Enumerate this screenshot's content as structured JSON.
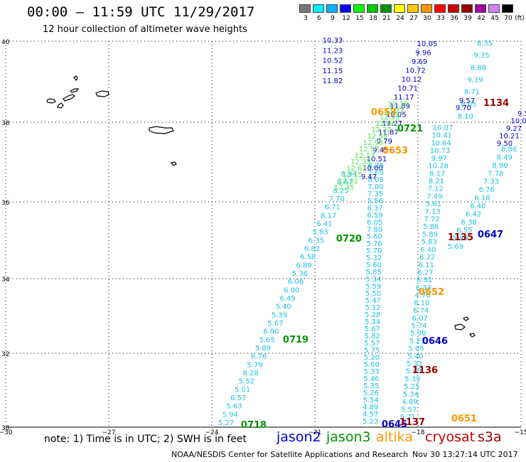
{
  "header": {
    "title": "00:00 – 11:59 UTC 11/29/2017",
    "subtitle": "12 hour collection of altimeter wave heights"
  },
  "color_scale": {
    "unit": "(ft)",
    "bins": [
      {
        "label": "3",
        "color": "#787878"
      },
      {
        "label": "6",
        "color": "#00f0ff"
      },
      {
        "label": "9",
        "color": "#00b4ff"
      },
      {
        "label": "12",
        "color": "#0000ff"
      },
      {
        "label": "15",
        "color": "#00ff00"
      },
      {
        "label": "18",
        "color": "#00c800"
      },
      {
        "label": "21",
        "color": "#009600"
      },
      {
        "label": "24",
        "color": "#ffff00"
      },
      {
        "label": "27",
        "color": "#ffc800"
      },
      {
        "label": "30",
        "color": "#ff9600"
      },
      {
        "label": "33",
        "color": "#ff0000"
      },
      {
        "label": "36",
        "color": "#c80000"
      },
      {
        "label": "39",
        "color": "#960000"
      },
      {
        "label": "42",
        "color": "#a000a0"
      },
      {
        "label": "45",
        "color": "#d282ff"
      },
      {
        "label": "70",
        "color": "#000000"
      }
    ]
  },
  "map": {
    "lat_labels": [
      "40",
      "38",
      "36",
      "34",
      "32",
      "30"
    ],
    "lon_labels": [
      "−30",
      "−27",
      "−24",
      "−21",
      "−18",
      "−15"
    ]
  },
  "tracks": [
    {
      "color": "#19c3e6",
      "values": [
        "5.27",
        "5.94",
        "5.63",
        "6.57",
        "5.01",
        "5.52",
        "6.28",
        "5.79",
        "6.76",
        "5.89",
        "5.65",
        "6.00",
        "5.67",
        "5.39",
        "5.40",
        "6.49",
        "6.00",
        "6.06",
        "5.36",
        "6.89",
        "6.58",
        "6.82",
        "6.35",
        "5.63",
        "6.41",
        "8.17",
        "6.71",
        "7.70",
        "8.25",
        "8.67",
        "8.94"
      ]
    },
    {
      "color": "#19c3e6",
      "values": [
        "5.23",
        "4.57",
        "4.89",
        "5.54",
        "5.26",
        "5.35",
        "5.46",
        "5.33",
        "5.60",
        "5.20",
        "5.75",
        "5.57",
        "5.82",
        "5.67",
        "5.34",
        "5.28",
        "5.12",
        "5.47",
        "5.50",
        "5.59",
        "5.34",
        "5.85",
        "5.60",
        "5.32",
        "5.70",
        "5.76",
        "5.60",
        "7.80",
        "6.05",
        "6.59",
        "6.37",
        "5.56",
        "7.35",
        "7.00",
        "8.08",
        "7.69",
        "8.25"
      ]
    },
    {
      "color": "#19c3e6",
      "values": [
        "5.71",
        "5.57",
        "4.89",
        "5.34",
        "5.25",
        "5.39",
        "5.48",
        "5.33",
        "5.40",
        "5.05",
        "5.21",
        "5.90",
        "5.74",
        "6.07",
        "6.74",
        "6.10",
        "4.70",
        "6.33",
        "6.91",
        "6.27",
        "6.11",
        "6.22",
        "6.40",
        "5.83",
        "5.89",
        "5.86",
        "7.72",
        "7.13",
        "5.61",
        "7.49",
        "7.12",
        "8.21",
        "8.17",
        "10.28",
        "9.97",
        "10.73",
        "10.64",
        "10.41",
        "10.07"
      ]
    },
    {
      "color": "#19c3e6",
      "values": [
        "5.69",
        "5.80",
        "6.55",
        "6.38",
        "6.42",
        "6.40",
        "6.18",
        "6.76",
        "7.33",
        "7.78",
        "8.90",
        "8.49",
        "8.86"
      ]
    },
    {
      "color": "#19c3e6",
      "values": [
        "8.10",
        "8.05",
        "8.71",
        "9.19",
        "8.88",
        "9.35",
        "8.35"
      ]
    },
    {
      "color": "#0000c8",
      "values": [
        "9.47",
        "10.00",
        "10.51",
        "9.45",
        "9.79",
        "11.87",
        "11.27",
        "10.05",
        "11.89",
        "11.17",
        "10.71",
        "10.12",
        "10.72",
        "9.69",
        "9.96",
        "10.05"
      ]
    },
    {
      "color": "#0000c8",
      "values": [
        "11.82",
        "11.15",
        "10.52",
        "11.23",
        "10.33"
      ]
    },
    {
      "color": "#0000c8",
      "values": [
        "9.50",
        "10.21",
        "9.27",
        "10.0",
        "9.5"
      ]
    },
    {
      "color": "#0000c8",
      "values": [
        "9.70",
        "9.57"
      ]
    },
    {
      "color": "#50e650",
      "values": [
        "17.45",
        "12.31",
        "12.15",
        "12.67",
        "12.33",
        "12.13",
        "12.57",
        "12.95",
        "12.58",
        "12.22",
        "12.06",
        "12.95",
        "13.22",
        "12.35"
      ]
    }
  ],
  "times": [
    {
      "label": "0653",
      "color": "#ff9600"
    },
    {
      "label": "0653",
      "color": "#ff9600"
    },
    {
      "label": "0721",
      "color": "#009600"
    },
    {
      "label": "1134",
      "color": "#960000"
    },
    {
      "label": "0720",
      "color": "#009600"
    },
    {
      "label": "1135",
      "color": "#960000"
    },
    {
      "label": "0647",
      "color": "#0000c8"
    },
    {
      "label": "0652",
      "color": "#ff9600"
    },
    {
      "label": "0646",
      "color": "#0000c8"
    },
    {
      "label": "0719",
      "color": "#009600"
    },
    {
      "label": "1136",
      "color": "#960000"
    },
    {
      "label": "0718",
      "color": "#009600"
    },
    {
      "label": "0645",
      "color": "#0000c8"
    },
    {
      "label": "1137",
      "color": "#960000"
    },
    {
      "label": "0651",
      "color": "#ff9600"
    }
  ],
  "footer": {
    "note": "note:  1) Time is in UTC;  2) SWH is in feet",
    "satellites": [
      {
        "name": "jason2",
        "color": "#0000c8"
      },
      {
        "name": "jason3",
        "color": "#009600"
      },
      {
        "name": "altika",
        "color": "#ff9600"
      },
      {
        "name": "cryosat",
        "color": "#c80000"
      },
      {
        "name": "s3a",
        "color": "#960000"
      }
    ],
    "center": "NOAA/NESDIS Center for Satellite Applications and Research",
    "stamp": "Nov 30 13:27:14 UTC 2017"
  }
}
